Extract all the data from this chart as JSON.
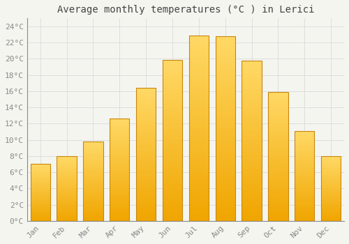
{
  "title": "Average monthly temperatures (°C ) in Lerici",
  "months": [
    "Jan",
    "Feb",
    "Mar",
    "Apr",
    "May",
    "Jun",
    "Jul",
    "Aug",
    "Sep",
    "Oct",
    "Nov",
    "Dec"
  ],
  "values": [
    7,
    8,
    9.8,
    12.6,
    16.4,
    19.9,
    22.9,
    22.8,
    19.8,
    15.9,
    11.1,
    8
  ],
  "bar_color_top": "#FFD966",
  "bar_color_bottom": "#F0A500",
  "bar_edge_color": "#C8860A",
  "background_color": "#F5F5F0",
  "plot_bg_color": "#F5F5F0",
  "grid_color": "#DDDDDD",
  "ylim": [
    0,
    25
  ],
  "yticks": [
    0,
    2,
    4,
    6,
    8,
    10,
    12,
    14,
    16,
    18,
    20,
    22,
    24
  ],
  "title_fontsize": 10,
  "tick_fontsize": 8,
  "tick_font_color": "#888888",
  "title_color": "#444444",
  "font_family": "monospace",
  "bar_width": 0.75
}
